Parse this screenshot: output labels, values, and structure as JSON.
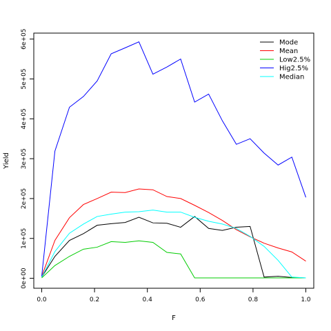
{
  "chart_data": {
    "type": "line",
    "title": "",
    "xlabel": "F",
    "ylabel": "Yield",
    "xlim": [
      -0.03,
      1.03
    ],
    "ylim": [
      -25000,
      615000
    ],
    "xticks": [
      0.0,
      0.2,
      0.4,
      0.6,
      0.8,
      1.0
    ],
    "xtick_labels": [
      "0.0",
      "0.2",
      "0.4",
      "0.6",
      "0.8",
      "1.0"
    ],
    "yticks": [
      0,
      100000,
      200000,
      300000,
      400000,
      500000,
      600000
    ],
    "ytick_labels": [
      "0e+00",
      "1e+05",
      "2e+05",
      "3e+05",
      "4e+05",
      "5e+05",
      "6e+05"
    ],
    "grid": false,
    "legend_position": "top-right",
    "x": [
      0.0,
      0.05,
      0.105,
      0.158,
      0.21,
      0.263,
      0.316,
      0.368,
      0.421,
      0.474,
      0.526,
      0.579,
      0.632,
      0.684,
      0.737,
      0.789,
      0.842,
      0.895,
      0.947,
      1.0
    ],
    "series": [
      {
        "name": "Mode",
        "color": "#000000",
        "values": [
          3000,
          55000,
          95000,
          112000,
          133000,
          137000,
          140000,
          153000,
          139000,
          138000,
          128000,
          155000,
          125000,
          120000,
          128000,
          130000,
          3000,
          5000,
          2000,
          1000
        ]
      },
      {
        "name": "Mean",
        "color": "#ff0000",
        "values": [
          5000,
          95000,
          152000,
          185000,
          200000,
          216000,
          215000,
          224000,
          222000,
          205000,
          200000,
          183000,
          165000,
          145000,
          122000,
          104000,
          88000,
          76000,
          66000,
          43000
        ]
      },
      {
        "name": "Low2.5%",
        "color": "#00cc00",
        "values": [
          1000,
          32000,
          55000,
          73000,
          78000,
          92000,
          90000,
          94000,
          90000,
          65000,
          61000,
          1000,
          1000,
          1000,
          1000,
          1000,
          1000,
          1000,
          1000,
          1000
        ]
      },
      {
        "name": "Hig2.5%",
        "color": "#0000ff",
        "values": [
          5000,
          319000,
          429000,
          456000,
          495000,
          563000,
          578000,
          593000,
          512000,
          530000,
          550000,
          442000,
          462000,
          395000,
          336000,
          350000,
          314000,
          284000,
          304000,
          203000
        ]
      },
      {
        "name": "Median",
        "color": "#00ffff",
        "values": [
          3000,
          67000,
          113000,
          136000,
          155000,
          161000,
          166000,
          167000,
          171000,
          166000,
          166000,
          153000,
          143000,
          136000,
          125000,
          105000,
          80000,
          45000,
          3000,
          1000
        ]
      }
    ]
  }
}
